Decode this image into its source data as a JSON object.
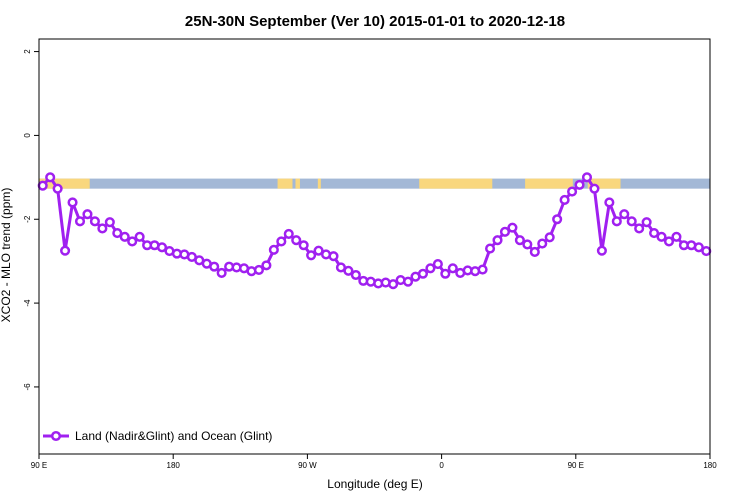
{
  "chart_data": {
    "type": "line",
    "title": "25N-30N September (Ver 10)   2015-01-01 to 2020-12-18",
    "xlabel": "Longitude (deg E)",
    "ylabel": "XCO2 - MLO trend (ppm)",
    "xlim": [
      90,
      540
    ],
    "ylim": [
      -7.6,
      2.3
    ],
    "x_ticks": [
      {
        "value": 90,
        "label": "90 E"
      },
      {
        "value": 180,
        "label": "180"
      },
      {
        "value": 270,
        "label": "90 W"
      },
      {
        "value": 360,
        "label": "0"
      },
      {
        "value": 450,
        "label": "90 E"
      },
      {
        "value": 540,
        "label": "180"
      }
    ],
    "y_ticks": [
      {
        "value": 2,
        "label": "2"
      },
      {
        "value": 0,
        "label": "0"
      },
      {
        "value": -2,
        "label": "-2"
      },
      {
        "value": -4,
        "label": "-4"
      },
      {
        "value": -6,
        "label": "-6"
      }
    ],
    "colors": {
      "series": "#a020f0",
      "land": "#f9d77e",
      "ocean": "#a3b8d6"
    },
    "land_ocean_band": {
      "y_top": -1.03,
      "y_bottom": -1.27,
      "land_ranges": [
        [
          90,
          124
        ],
        [
          250,
          260
        ],
        [
          262,
          265
        ],
        [
          277,
          279
        ],
        [
          345,
          394
        ],
        [
          416,
          448
        ],
        [
          458,
          480
        ]
      ]
    },
    "legend": {
      "position": "bottom-left",
      "entries": [
        "Land (Nadir&Glint) and Ocean (Glint)"
      ]
    },
    "series": [
      {
        "name": "Land (Nadir&Glint) and Ocean (Glint)",
        "x": [
          92.5,
          97.5,
          102.5,
          107.5,
          112.5,
          117.5,
          122.5,
          127.5,
          132.5,
          137.5,
          142.5,
          147.5,
          152.5,
          157.5,
          162.5,
          167.5,
          172.5,
          177.5,
          182.5,
          187.5,
          192.5,
          197.5,
          202.5,
          207.5,
          212.5,
          217.5,
          222.5,
          227.5,
          232.5,
          237.5,
          242.5,
          247.5,
          252.5,
          257.5,
          262.5,
          267.5,
          272.5,
          277.5,
          282.5,
          287.5,
          292.5,
          297.5,
          302.5,
          307.5,
          312.5,
          317.5,
          322.5,
          327.5,
          332.5,
          337.5,
          342.5,
          347.5,
          352.5,
          357.5,
          362.5,
          367.5,
          372.5,
          377.5,
          382.5,
          387.5,
          392.5,
          397.5,
          402.5,
          407.5,
          412.5,
          417.5,
          422.5,
          427.5,
          432.5,
          437.5,
          442.5,
          447.5,
          452.5,
          457.5,
          462.5,
          467.5,
          472.5,
          477.5,
          482.5,
          487.5,
          492.5,
          497.5,
          502.5,
          507.5,
          512.5,
          517.5,
          522.5,
          527.5,
          532.5,
          537.5
        ],
        "y": [
          -1.2,
          -1.0,
          -1.27,
          -2.75,
          -1.6,
          -2.05,
          -1.88,
          -2.05,
          -2.22,
          -2.07,
          -2.33,
          -2.42,
          -2.53,
          -2.42,
          -2.62,
          -2.62,
          -2.67,
          -2.76,
          -2.82,
          -2.84,
          -2.9,
          -2.98,
          -3.06,
          -3.13,
          -3.28,
          -3.13,
          -3.15,
          -3.17,
          -3.24,
          -3.21,
          -3.1,
          -2.73,
          -2.53,
          -2.35,
          -2.5,
          -2.62,
          -2.86,
          -2.75,
          -2.84,
          -2.88,
          -3.15,
          -3.23,
          -3.33,
          -3.47,
          -3.49,
          -3.53,
          -3.51,
          -3.55,
          -3.45,
          -3.49,
          -3.37,
          -3.3,
          -3.17,
          -3.07,
          -3.3,
          -3.17,
          -3.28,
          -3.22,
          -3.24,
          -3.2,
          -2.7,
          -2.5,
          -2.3,
          -2.2,
          -2.5,
          -2.6,
          -2.78,
          -2.58,
          -2.43,
          -2.0,
          -1.54,
          -1.34,
          -1.18,
          -1.0,
          -1.27,
          -2.75,
          -1.6,
          -2.05,
          -1.88,
          -2.05,
          -2.22,
          -2.07,
          -2.33,
          -2.42,
          -2.53,
          -2.42,
          -2.62,
          -2.62,
          -2.67,
          -2.76
        ]
      }
    ]
  }
}
